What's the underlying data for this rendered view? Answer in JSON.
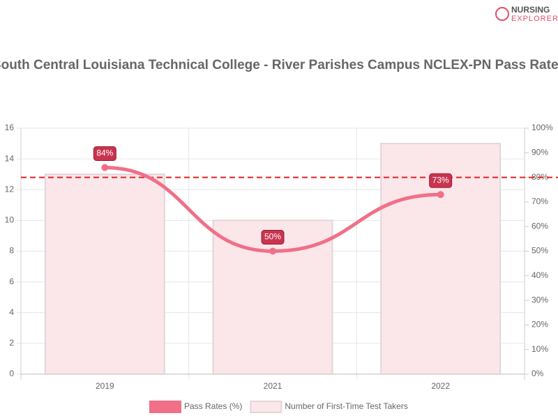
{
  "logo": [
    "NURSING",
    "EXPLORER"
  ],
  "chart_data": {
    "type": "bar",
    "title": "South Central Louisiana Technical College - River Parishes Campus NCLEX-PN Pass Rates",
    "categories": [
      "2019",
      "2021",
      "2022"
    ],
    "series": [
      {
        "name": "Pass Rates (%)",
        "type": "line",
        "axis": "y2",
        "color": "#f07088",
        "values": [
          84,
          50,
          73
        ],
        "value_labels": [
          "84%",
          "50%",
          "73%"
        ]
      },
      {
        "name": "Number of First-Time Test Takers",
        "type": "bar",
        "axis": "y",
        "color": "#fbe6ea",
        "values": [
          13,
          10,
          15
        ]
      }
    ],
    "reference_line": {
      "axis": "y2",
      "value": 80,
      "color": "#e02020"
    },
    "ylim": [
      0,
      16
    ],
    "yticks": [
      0,
      2,
      4,
      6,
      8,
      10,
      12,
      14,
      16
    ],
    "y2lim": [
      0,
      100
    ],
    "y2ticks": [
      {
        "value": 0,
        "label": "0%"
      },
      {
        "value": 10,
        "label": "10%"
      },
      {
        "value": 20,
        "label": "20%"
      },
      {
        "value": 30,
        "label": "30%"
      },
      {
        "value": 40,
        "label": "40%"
      },
      {
        "value": 50,
        "label": "50%"
      },
      {
        "value": 60,
        "label": "60%"
      },
      {
        "value": 70,
        "label": "70%"
      },
      {
        "value": 80,
        "label": "80%"
      },
      {
        "value": 90,
        "label": "90%"
      },
      {
        "value": 100,
        "label": "100%"
      }
    ],
    "grid": true,
    "legend": "bottom"
  }
}
